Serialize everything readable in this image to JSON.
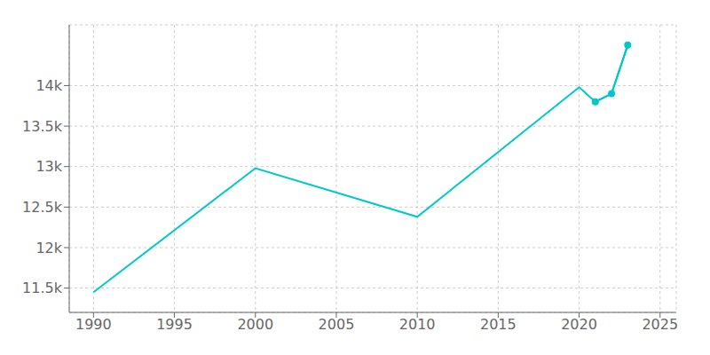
{
  "chart_data": {
    "type": "line",
    "x": [
      1990,
      2000,
      2010,
      2020,
      2021,
      2022,
      2023
    ],
    "series": [
      {
        "color": "#00c8c8",
        "marker": "none",
        "values": [
          11450,
          12980,
          12380,
          13980,
          13800,
          13900,
          14500
        ]
      },
      {
        "color": "#00c8c8",
        "marker": "circle",
        "values": [
          null,
          null,
          null,
          null,
          13800,
          13900,
          14500
        ]
      }
    ],
    "xlim": [
      1988.5,
      2026
    ],
    "ylim": [
      11200,
      14750
    ],
    "xticks": [
      1990,
      1995,
      2000,
      2005,
      2010,
      2015,
      2020,
      2025
    ],
    "yticks": [
      {
        "value": 11500,
        "label": "11.5k"
      },
      {
        "value": 12000,
        "label": "12k"
      },
      {
        "value": 12500,
        "label": "12.5k"
      },
      {
        "value": 13000,
        "label": "13k"
      },
      {
        "value": 13500,
        "label": "13.5k"
      },
      {
        "value": 14000,
        "label": "14k"
      }
    ],
    "grid": true
  }
}
